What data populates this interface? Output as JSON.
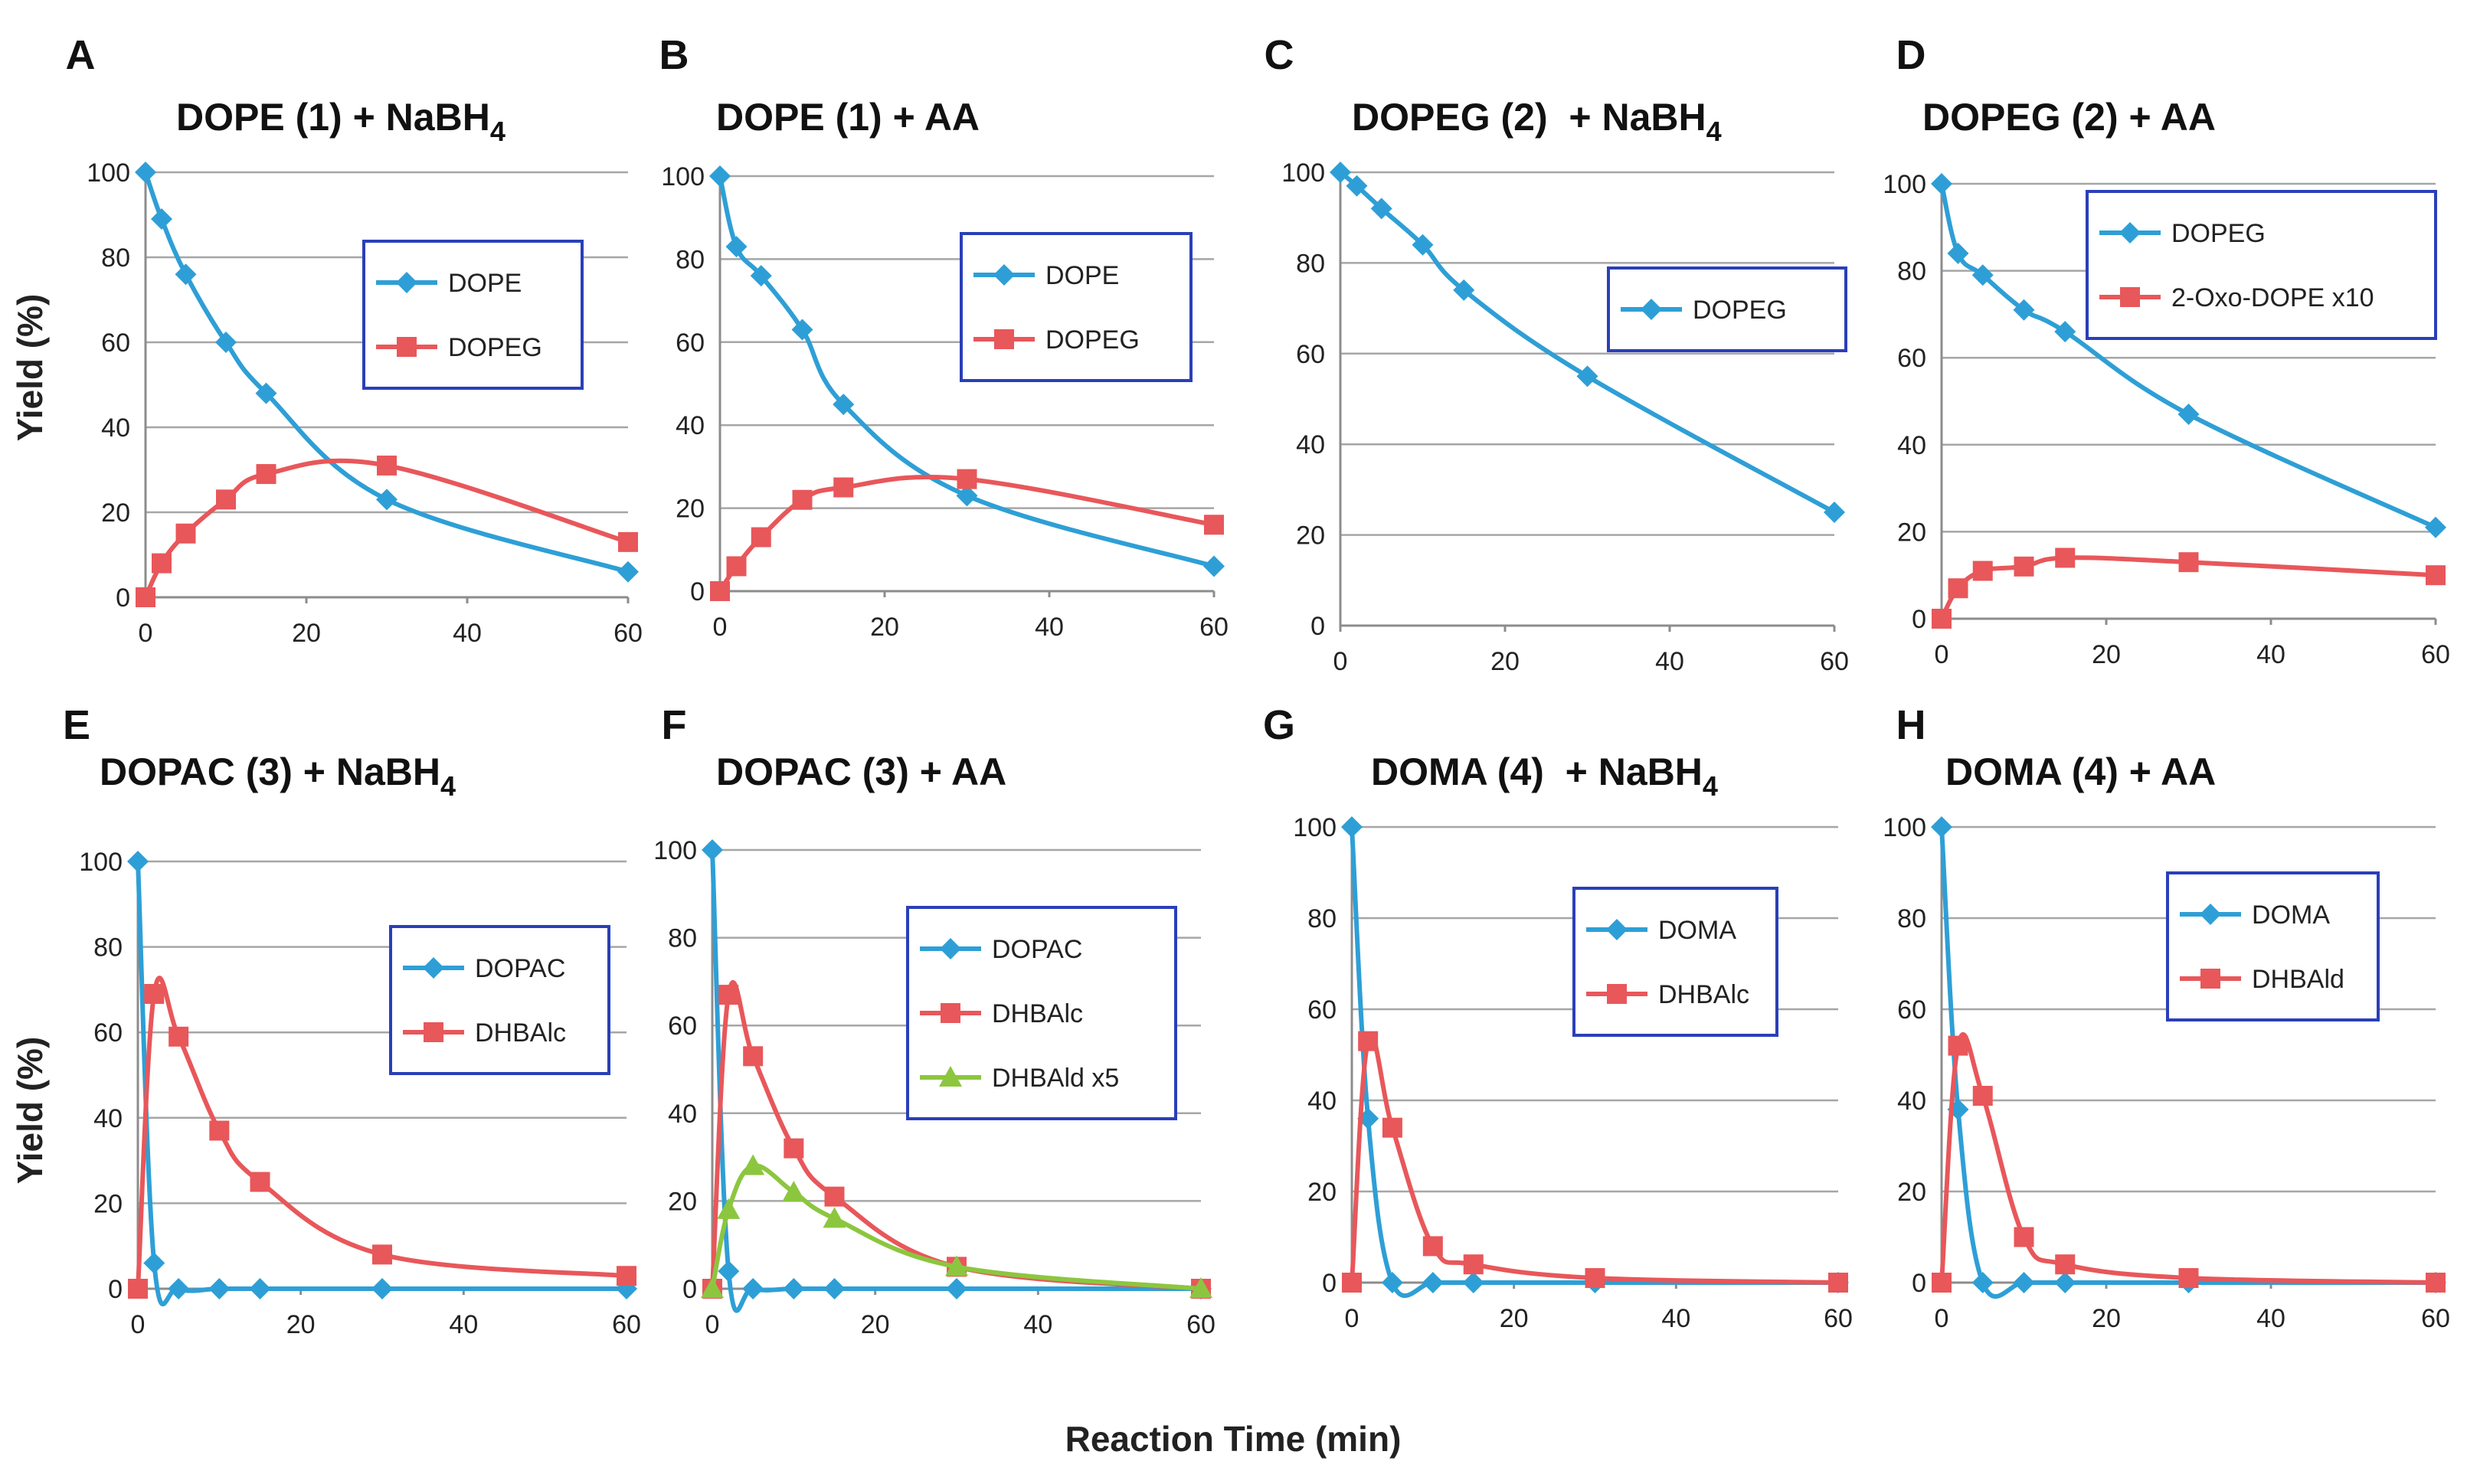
{
  "figure": {
    "xlabel": "Reaction Time (min)",
    "ylabel_top": "Yield (%)",
    "ylabel_bottom": "Yield (%)"
  },
  "colors": {
    "blue": "#2e9fd6",
    "red": "#e8575a",
    "green": "#8cc63f",
    "legend_border": "#2a3fb8"
  },
  "chart_data": [
    {
      "id": "A",
      "type": "line",
      "title": "DOPE (1) + NaBH",
      "title_sub": "4",
      "xlabel": "",
      "ylabel": "Yield (%)",
      "xlim": [
        0,
        60
      ],
      "ylim": [
        0,
        100
      ],
      "xticks": [
        0,
        20,
        40,
        60
      ],
      "yticks": [
        0,
        20,
        40,
        60,
        80,
        100
      ],
      "legend": "right",
      "series": [
        {
          "name": "DOPE",
          "color": "#2e9fd6",
          "marker": "diamond",
          "x": [
            0,
            2,
            5,
            10,
            15,
            30,
            60
          ],
          "y": [
            100,
            89,
            76,
            60,
            48,
            23,
            6
          ]
        },
        {
          "name": "DOPEG",
          "color": "#e8575a",
          "marker": "square",
          "x": [
            0,
            2,
            5,
            10,
            15,
            30,
            60
          ],
          "y": [
            0,
            8,
            15,
            23,
            29,
            31,
            13
          ]
        }
      ]
    },
    {
      "id": "B",
      "type": "line",
      "title": "DOPE (1) + AA",
      "title_sub": "",
      "xlabel": "",
      "ylabel": "",
      "xlim": [
        0,
        60
      ],
      "ylim": [
        0,
        100
      ],
      "xticks": [
        0,
        20,
        40,
        60
      ],
      "yticks": [
        0,
        20,
        40,
        60,
        80,
        100
      ],
      "legend": "right",
      "series": [
        {
          "name": "DOPE",
          "color": "#2e9fd6",
          "marker": "diamond",
          "x": [
            0,
            2,
            5,
            10,
            15,
            30,
            60
          ],
          "y": [
            100,
            83,
            76,
            63,
            45,
            23,
            6
          ]
        },
        {
          "name": "DOPEG",
          "color": "#e8575a",
          "marker": "square",
          "x": [
            0,
            2,
            5,
            10,
            15,
            30,
            60
          ],
          "y": [
            0,
            6,
            13,
            22,
            25,
            27,
            16
          ]
        }
      ]
    },
    {
      "id": "C",
      "type": "line",
      "title": "DOPEG (2)  + NaBH",
      "title_sub": "4",
      "xlabel": "",
      "ylabel": "",
      "xlim": [
        0,
        60
      ],
      "ylim": [
        0,
        100
      ],
      "xticks": [
        0,
        20,
        40,
        60
      ],
      "yticks": [
        0,
        20,
        40,
        60,
        80,
        100
      ],
      "legend": "right",
      "series": [
        {
          "name": "DOPEG",
          "color": "#2e9fd6",
          "marker": "diamond",
          "x": [
            0,
            2,
            5,
            10,
            15,
            30,
            60
          ],
          "y": [
            100,
            97,
            92,
            84,
            74,
            55,
            25
          ]
        }
      ]
    },
    {
      "id": "D",
      "type": "line",
      "title": "DOPEG (2) + AA",
      "title_sub": "",
      "xlabel": "",
      "ylabel": "",
      "xlim": [
        0,
        60
      ],
      "ylim": [
        0,
        100
      ],
      "xticks": [
        0,
        20,
        40,
        60
      ],
      "yticks": [
        0,
        20,
        40,
        60,
        80,
        100
      ],
      "legend": "right",
      "series": [
        {
          "name": "DOPEG",
          "color": "#2e9fd6",
          "marker": "diamond",
          "x": [
            0,
            2,
            5,
            10,
            15,
            30,
            60
          ],
          "y": [
            100,
            84,
            79,
            71,
            66,
            47,
            21
          ]
        },
        {
          "name": "2-Oxo-DOPE x10",
          "color": "#e8575a",
          "marker": "square",
          "x": [
            0,
            2,
            5,
            10,
            15,
            30,
            60
          ],
          "y": [
            0,
            7,
            11,
            12,
            14,
            13,
            10
          ]
        }
      ]
    },
    {
      "id": "E",
      "type": "line",
      "title": "DOPAC (3) + NaBH",
      "title_sub": "4",
      "xlabel": "",
      "ylabel": "Yield (%)",
      "xlim": [
        0,
        60
      ],
      "ylim": [
        0,
        100
      ],
      "xticks": [
        0,
        20,
        40,
        60
      ],
      "yticks": [
        0,
        20,
        40,
        60,
        80,
        100
      ],
      "legend": "right",
      "series": [
        {
          "name": "DOPAC",
          "color": "#2e9fd6",
          "marker": "diamond",
          "x": [
            0,
            2,
            5,
            10,
            15,
            30,
            60
          ],
          "y": [
            100,
            6,
            0,
            0,
            0,
            0,
            0
          ]
        },
        {
          "name": "DHBAlc",
          "color": "#e8575a",
          "marker": "square",
          "x": [
            0,
            2,
            5,
            10,
            15,
            30,
            60
          ],
          "y": [
            0,
            69,
            59,
            37,
            25,
            8,
            3
          ]
        }
      ]
    },
    {
      "id": "F",
      "type": "line",
      "title": "DOPAC (3) + AA",
      "title_sub": "",
      "xlabel": "",
      "ylabel": "",
      "xlim": [
        0,
        60
      ],
      "ylim": [
        0,
        100
      ],
      "xticks": [
        0,
        20,
        40,
        60
      ],
      "yticks": [
        0,
        20,
        40,
        60,
        80,
        100
      ],
      "legend": "right",
      "series": [
        {
          "name": "DOPAC",
          "color": "#2e9fd6",
          "marker": "diamond",
          "x": [
            0,
            2,
            5,
            10,
            15,
            30,
            60
          ],
          "y": [
            100,
            4,
            0,
            0,
            0,
            0,
            0
          ]
        },
        {
          "name": "DHBAlc",
          "color": "#e8575a",
          "marker": "square",
          "x": [
            0,
            2,
            5,
            10,
            15,
            30,
            60
          ],
          "y": [
            0,
            67,
            53,
            32,
            21,
            5,
            0
          ]
        },
        {
          "name": "DHBAld x5",
          "color": "#8cc63f",
          "marker": "triangle",
          "x": [
            0,
            2,
            5,
            10,
            15,
            30,
            60
          ],
          "y": [
            0,
            18,
            28,
            22,
            16,
            5,
            0
          ]
        }
      ]
    },
    {
      "id": "G",
      "type": "line",
      "title": "DOMA (4)  + NaBH",
      "title_sub": "4",
      "xlabel": "",
      "ylabel": "",
      "xlim": [
        0,
        60
      ],
      "ylim": [
        0,
        100
      ],
      "xticks": [
        0,
        20,
        40,
        60
      ],
      "yticks": [
        0,
        20,
        40,
        60,
        80,
        100
      ],
      "legend": "right",
      "series": [
        {
          "name": "DOMA",
          "color": "#2e9fd6",
          "marker": "diamond",
          "x": [
            0,
            2,
            5,
            10,
            15,
            30,
            60
          ],
          "y": [
            100,
            36,
            0,
            0,
            0,
            0,
            0
          ]
        },
        {
          "name": "DHBAlc",
          "color": "#e8575a",
          "marker": "square",
          "x": [
            0,
            2,
            5,
            10,
            15,
            30,
            60
          ],
          "y": [
            0,
            53,
            34,
            8,
            4,
            1,
            0
          ]
        }
      ]
    },
    {
      "id": "H",
      "type": "line",
      "title": "DOMA (4) + AA",
      "title_sub": "",
      "xlabel": "",
      "ylabel": "",
      "xlim": [
        0,
        60
      ],
      "ylim": [
        0,
        100
      ],
      "xticks": [
        0,
        20,
        40,
        60
      ],
      "yticks": [
        0,
        20,
        40,
        60,
        80,
        100
      ],
      "legend": "right",
      "series": [
        {
          "name": "DOMA",
          "color": "#2e9fd6",
          "marker": "diamond",
          "x": [
            0,
            2,
            5,
            10,
            15,
            30,
            60
          ],
          "y": [
            100,
            38,
            0,
            0,
            0,
            0,
            0
          ]
        },
        {
          "name": "DHBAld",
          "color": "#e8575a",
          "marker": "square",
          "x": [
            0,
            2,
            5,
            10,
            15,
            30,
            60
          ],
          "y": [
            0,
            52,
            41,
            10,
            4,
            1,
            0
          ]
        }
      ]
    }
  ]
}
